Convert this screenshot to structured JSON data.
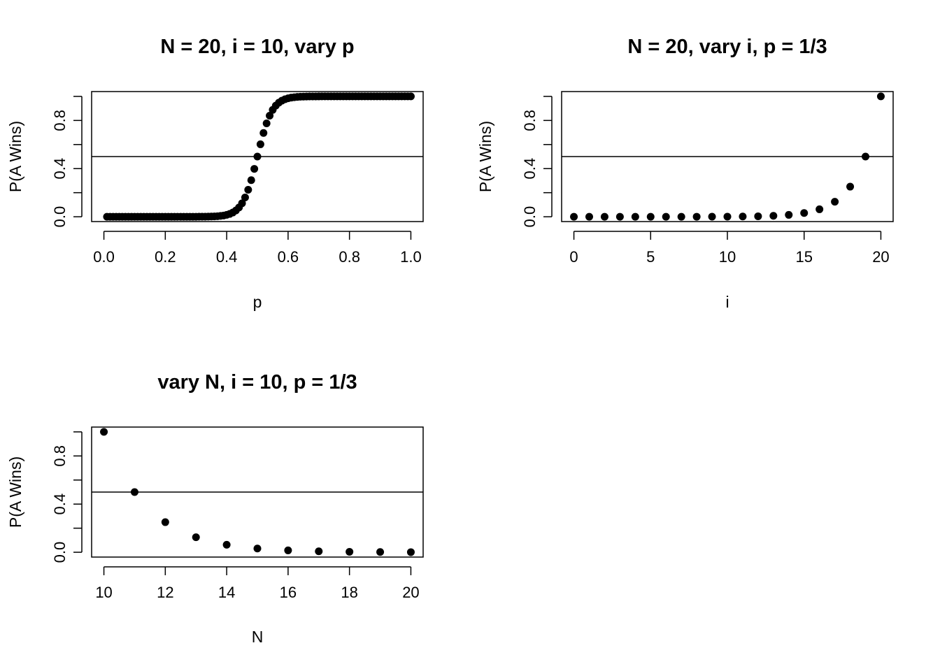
{
  "chart_data": [
    {
      "type": "scatter",
      "title": "N = 20, i = 10, vary p",
      "xlabel": "p",
      "ylabel": "P(A Wins)",
      "xlim": [
        0.0,
        1.0
      ],
      "ylim": [
        0.0,
        1.0
      ],
      "xticks": [
        "0.0",
        "0.2",
        "0.4",
        "0.6",
        "0.8",
        "1.0"
      ],
      "yticks": [
        "0.0",
        "0.4",
        "0.8"
      ],
      "hline": 0.5,
      "series": [
        {
          "curve": "logistic",
          "x_start": 0.01,
          "x_end": 1.0,
          "x_step": 0.01,
          "midpoint": 0.5,
          "steepness": 41.4
        }
      ],
      "grid": false,
      "legend": "none"
    },
    {
      "type": "scatter",
      "title": "N = 20, vary i, p = 1/3",
      "xlabel": "i",
      "ylabel": "P(A Wins)",
      "xlim": [
        0,
        20
      ],
      "ylim": [
        0.0,
        1.0
      ],
      "xticks": [
        "0",
        "5",
        "10",
        "15",
        "20"
      ],
      "yticks": [
        "0.0",
        "0.4",
        "0.8"
      ],
      "hline": 0.5,
      "series": [
        {
          "x": [
            0,
            1,
            2,
            3,
            4,
            5,
            6,
            7,
            8,
            9,
            10,
            11,
            12,
            13,
            14,
            15,
            16,
            17,
            18,
            19,
            20
          ],
          "y": [
            0,
            1e-06,
            3e-06,
            7e-06,
            1.4e-05,
            3e-05,
            6e-05,
            0.00012,
            0.00024,
            0.00049,
            0.00098,
            0.002,
            0.0039,
            0.0078,
            0.0156,
            0.031,
            0.062,
            0.125,
            0.25,
            0.5,
            1.0
          ]
        }
      ],
      "grid": false,
      "legend": "none"
    },
    {
      "type": "scatter",
      "title": "vary N, i = 10, p = 1/3",
      "xlabel": "N",
      "ylabel": "P(A Wins)",
      "xlim": [
        10,
        20
      ],
      "ylim": [
        0.0,
        1.0
      ],
      "xticks": [
        "10",
        "12",
        "14",
        "16",
        "18",
        "20"
      ],
      "yticks": [
        "0.0",
        "0.4",
        "0.8"
      ],
      "hline": 0.5,
      "series": [
        {
          "x": [
            10,
            11,
            12,
            13,
            14,
            15,
            16,
            17,
            18,
            19,
            20
          ],
          "y": [
            1.0,
            0.5,
            0.25,
            0.125,
            0.0625,
            0.031,
            0.0156,
            0.0078,
            0.0039,
            0.002,
            0.001
          ]
        }
      ],
      "grid": false,
      "legend": "none"
    }
  ]
}
